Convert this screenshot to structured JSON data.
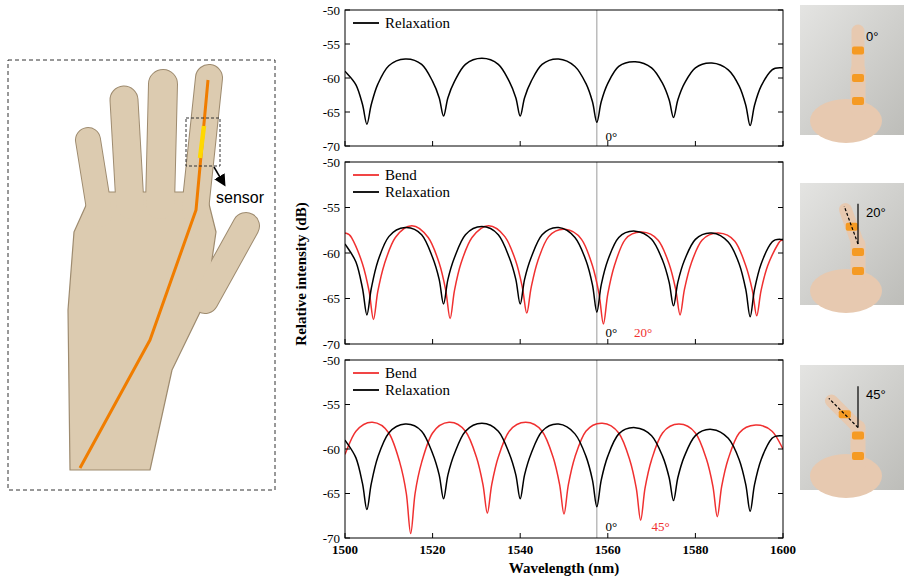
{
  "chart_data": [
    {
      "type": "line",
      "legend": "upper left",
      "grid": false,
      "tick_labels": "y",
      "xlim": [
        1500,
        1600
      ],
      "xticks": [
        1500,
        1520,
        1540,
        1560,
        1580,
        1600
      ],
      "ylim": [
        -70,
        -50
      ],
      "yticks": [
        -70,
        -65,
        -60,
        -55,
        -50
      ],
      "reference_x": 1557.5,
      "annotations": [
        {
          "text": "0°",
          "x": 1559.5,
          "y": -69.3,
          "color": "#000000"
        }
      ],
      "series": [
        {
          "name": "Relaxation",
          "color": "#000000",
          "x": [
            1500,
            1502.5,
            1504,
            1505,
            1506,
            1507.5,
            1510,
            1513.75,
            1517.5,
            1520,
            1521.5,
            1522.5,
            1523.5,
            1525,
            1527.5,
            1531.25,
            1535,
            1537.5,
            1539,
            1540,
            1541,
            1542.5,
            1545,
            1548.75,
            1552.5,
            1555,
            1556.5,
            1557.5,
            1558.5,
            1560,
            1562.5,
            1566.25,
            1570,
            1572.5,
            1574,
            1575,
            1576,
            1577.5,
            1580,
            1583.75,
            1587.5,
            1590,
            1591.5,
            1592.5,
            1593.5,
            1595,
            1597.5,
            1600
          ],
          "values": [
            -59.0,
            -61.0,
            -63.9,
            -66.8,
            -63.9,
            -60.9,
            -58.2,
            -57.2,
            -58.0,
            -60.5,
            -62.9,
            -65.6,
            -62.9,
            -60.5,
            -58.0,
            -57.1,
            -58.0,
            -60.5,
            -62.9,
            -65.6,
            -62.9,
            -60.5,
            -58.0,
            -57.2,
            -58.3,
            -60.8,
            -63.5,
            -66.5,
            -63.5,
            -60.8,
            -58.3,
            -57.6,
            -58.5,
            -60.8,
            -63.2,
            -65.8,
            -63.2,
            -60.8,
            -58.5,
            -57.8,
            -58.8,
            -61.2,
            -64.0,
            -67.0,
            -64.0,
            -61.2,
            -58.8,
            -58.5
          ]
        }
      ]
    },
    {
      "type": "line",
      "legend": "upper left",
      "grid": false,
      "tick_labels": "y",
      "xlim": [
        1500,
        1600
      ],
      "xticks": [
        1500,
        1520,
        1540,
        1560,
        1580,
        1600
      ],
      "ylim": [
        -70,
        -50
      ],
      "yticks": [
        -70,
        -65,
        -60,
        -55,
        -50
      ],
      "reference_x": 1557.5,
      "annotations": [
        {
          "text": "0°",
          "x": 1559.5,
          "y": -69.2,
          "color": "#000000"
        },
        {
          "text": "20°",
          "x": 1566,
          "y": -69.2,
          "color": "#f03030"
        }
      ],
      "series": [
        {
          "name": "Bend",
          "color": "#f03030",
          "x": [
            1500,
            1501.5,
            1504,
            1505.5,
            1506.5,
            1507.5,
            1509,
            1511.5,
            1515.25,
            1519,
            1521.5,
            1523,
            1524,
            1525,
            1526.5,
            1529,
            1532.75,
            1536.5,
            1539,
            1540.5,
            1541.5,
            1542.5,
            1544,
            1546.5,
            1550.25,
            1554,
            1556.5,
            1558,
            1559,
            1560,
            1561.5,
            1564,
            1567.75,
            1571.5,
            1574,
            1575.5,
            1576.5,
            1577.5,
            1579,
            1581.5,
            1585.25,
            1589,
            1591.5,
            1593,
            1594,
            1595,
            1596.5,
            1599,
            1600
          ],
          "values": [
            -57.8,
            -58.3,
            -61.2,
            -64.2,
            -67.3,
            -64.2,
            -61.2,
            -58.3,
            -57.0,
            -58.3,
            -61.1,
            -64.1,
            -67.2,
            -64.1,
            -61.1,
            -58.3,
            -57.0,
            -58.2,
            -60.9,
            -63.8,
            -66.6,
            -63.8,
            -60.9,
            -58.2,
            -57.4,
            -58.5,
            -61.4,
            -64.5,
            -67.8,
            -64.5,
            -61.4,
            -58.5,
            -57.7,
            -58.6,
            -61.2,
            -64.0,
            -66.8,
            -64.0,
            -61.2,
            -58.6,
            -57.8,
            -58.7,
            -61.4,
            -64.1,
            -66.9,
            -64.1,
            -61.4,
            -58.9,
            -58.6
          ]
        },
        {
          "name": "Relaxation",
          "color": "#000000",
          "x": [
            1500,
            1502.5,
            1504,
            1505,
            1506,
            1507.5,
            1510,
            1513.75,
            1517.5,
            1520,
            1521.5,
            1522.5,
            1523.5,
            1525,
            1527.5,
            1531.25,
            1535,
            1537.5,
            1539,
            1540,
            1541,
            1542.5,
            1545,
            1548.75,
            1552.5,
            1555,
            1556.5,
            1557.5,
            1558.5,
            1560,
            1562.5,
            1566.25,
            1570,
            1572.5,
            1574,
            1575,
            1576,
            1577.5,
            1580,
            1583.75,
            1587.5,
            1590,
            1591.5,
            1592.5,
            1593.5,
            1595,
            1597.5,
            1600
          ],
          "values": [
            -59.0,
            -61.0,
            -63.9,
            -66.8,
            -63.9,
            -60.9,
            -58.2,
            -57.2,
            -58.0,
            -60.5,
            -62.9,
            -65.6,
            -62.9,
            -60.5,
            -58.0,
            -57.1,
            -58.0,
            -60.5,
            -62.9,
            -65.6,
            -62.9,
            -60.5,
            -58.0,
            -57.2,
            -58.3,
            -60.8,
            -63.5,
            -66.5,
            -63.5,
            -60.8,
            -58.3,
            -57.6,
            -58.5,
            -60.8,
            -63.2,
            -65.8,
            -63.2,
            -60.8,
            -58.5,
            -57.8,
            -58.8,
            -61.2,
            -64.0,
            -67.0,
            -64.0,
            -61.2,
            -58.8,
            -58.5
          ]
        }
      ]
    },
    {
      "type": "line",
      "legend": "upper left",
      "grid": false,
      "tick_labels": true,
      "xlim": [
        1500,
        1600
      ],
      "xticks": [
        1500,
        1520,
        1540,
        1560,
        1580,
        1600
      ],
      "ylim": [
        -70,
        -50
      ],
      "yticks": [
        -70,
        -65,
        -60,
        -55,
        -50
      ],
      "reference_x": 1557.5,
      "annotations": [
        {
          "text": "0°",
          "x": 1559.5,
          "y": -69.2,
          "color": "#000000"
        },
        {
          "text": "45°",
          "x": 1570,
          "y": -69.2,
          "color": "#f03030"
        }
      ],
      "series": [
        {
          "name": "Bend",
          "color": "#f03030",
          "x": [
            1500,
            1502.5,
            1506.25,
            1510,
            1512.5,
            1514,
            1515,
            1516,
            1517.5,
            1520,
            1523.75,
            1527.5,
            1530,
            1531.5,
            1532.5,
            1533.5,
            1535,
            1537.5,
            1541.25,
            1545,
            1547.5,
            1549,
            1550,
            1551,
            1552.5,
            1555,
            1558.75,
            1562.5,
            1565,
            1566.5,
            1567.5,
            1568.5,
            1570,
            1572.5,
            1576.25,
            1580,
            1582.5,
            1584,
            1585,
            1586,
            1587.5,
            1590,
            1593.75,
            1597.5,
            1600
          ],
          "values": [
            -60.6,
            -58.0,
            -57.0,
            -58.2,
            -61.5,
            -65.0,
            -69.5,
            -65.0,
            -61.5,
            -58.2,
            -57.0,
            -58.0,
            -60.9,
            -64.0,
            -67.2,
            -64.0,
            -60.9,
            -58.0,
            -57.0,
            -58.0,
            -60.9,
            -64.0,
            -67.3,
            -64.0,
            -60.9,
            -58.0,
            -57.1,
            -58.2,
            -61.2,
            -64.4,
            -68.0,
            -64.4,
            -61.2,
            -58.2,
            -57.2,
            -58.2,
            -61.1,
            -64.2,
            -67.6,
            -64.2,
            -61.1,
            -58.2,
            -57.3,
            -58.0,
            -60.0
          ]
        },
        {
          "name": "Relaxation",
          "color": "#000000",
          "x": [
            1500,
            1502.5,
            1504,
            1505,
            1506,
            1507.5,
            1510,
            1513.75,
            1517.5,
            1520,
            1521.5,
            1522.5,
            1523.5,
            1525,
            1527.5,
            1531.25,
            1535,
            1537.5,
            1539,
            1540,
            1541,
            1542.5,
            1545,
            1548.75,
            1552.5,
            1555,
            1556.5,
            1557.5,
            1558.5,
            1560,
            1562.5,
            1566.25,
            1570,
            1572.5,
            1574,
            1575,
            1576,
            1577.5,
            1580,
            1583.75,
            1587.5,
            1590,
            1591.5,
            1592.5,
            1593.5,
            1595,
            1597.5,
            1600
          ],
          "values": [
            -59.0,
            -61.0,
            -63.9,
            -66.8,
            -63.9,
            -60.9,
            -58.2,
            -57.2,
            -58.0,
            -60.5,
            -62.9,
            -65.6,
            -62.9,
            -60.5,
            -58.0,
            -57.1,
            -58.0,
            -60.5,
            -62.9,
            -65.6,
            -62.9,
            -60.5,
            -58.0,
            -57.2,
            -58.3,
            -60.8,
            -63.5,
            -66.5,
            -63.5,
            -60.8,
            -58.3,
            -57.6,
            -58.5,
            -60.8,
            -63.2,
            -65.8,
            -63.2,
            -60.8,
            -58.5,
            -57.8,
            -58.8,
            -61.2,
            -64.0,
            -67.0,
            -64.0,
            -61.2,
            -58.8,
            -58.5
          ]
        }
      ]
    }
  ],
  "shared_axes": {
    "ylabel": "Relative intensity (dB)",
    "xlabel": "Wavelength (nm)"
  },
  "hand": {
    "sensor_label": "sensor"
  },
  "photos": [
    {
      "label": "0°",
      "angle": 0
    },
    {
      "label": "20°",
      "angle": 20
    },
    {
      "label": "45°",
      "angle": 45
    }
  ]
}
